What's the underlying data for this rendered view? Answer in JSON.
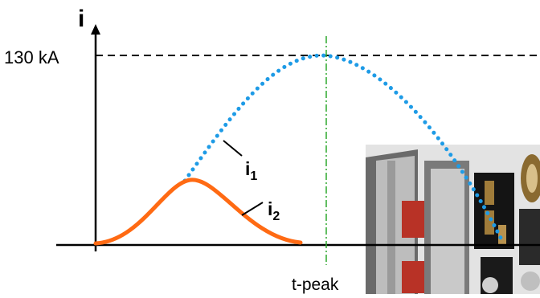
{
  "diagram": {
    "y_axis_symbol": "i",
    "peak_label": "130 kA",
    "t_peak_label": "t-peak",
    "curve1": {
      "label_main": "i",
      "label_sub": "1",
      "color": "#1e9be6",
      "style": "dotted"
    },
    "curve2": {
      "label_main": "i",
      "label_sub": "2",
      "color": "#ff6a13",
      "style": "solid"
    },
    "photo": {
      "icon": "switchgear-photo",
      "colors": {
        "frame": "#5b5b5b",
        "panel": "#bcbcbc",
        "red": "#b83226",
        "black": "#141414",
        "brass": "#a07c3a"
      }
    }
  }
}
